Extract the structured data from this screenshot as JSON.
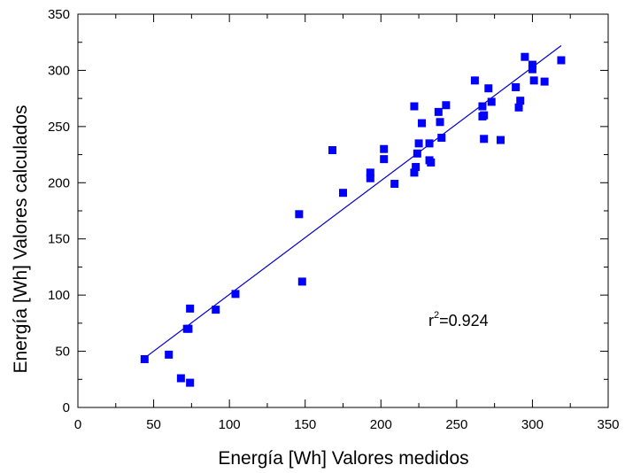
{
  "chart_data": {
    "type": "scatter",
    "title": "",
    "xlabel": "Energía [Wh] Valores medidos",
    "ylabel": "Energía [Wh] Valores calculados",
    "xlim": [
      0,
      350
    ],
    "ylim": [
      0,
      350
    ],
    "xticks": [
      0,
      50,
      100,
      150,
      200,
      250,
      300,
      350
    ],
    "yticks": [
      0,
      50,
      100,
      150,
      200,
      250,
      300,
      350
    ],
    "grid": false,
    "annotation": {
      "prefix": "r",
      "superscript": "2",
      "value": "=0.924"
    },
    "colors": {
      "marker": "#0000ff",
      "fit_line": "#0000cc",
      "axis": "#000000"
    },
    "fit_line": {
      "x": [
        44,
        319
      ],
      "y": [
        44,
        322
      ]
    },
    "series": [
      {
        "x": [
          44,
          60,
          68,
          72,
          73,
          74,
          74,
          91,
          104,
          146,
          148,
          168,
          175,
          193,
          193,
          202,
          202,
          209,
          222,
          222,
          223,
          224,
          225,
          227,
          232,
          232,
          233,
          238,
          239,
          240,
          243,
          262,
          267,
          267,
          268,
          268,
          271,
          273,
          279,
          289,
          291,
          292,
          295,
          300,
          300,
          301,
          308,
          319
        ],
        "y": [
          43,
          47,
          26,
          70,
          70,
          88,
          22,
          87,
          101,
          172,
          112,
          229,
          191,
          209,
          204,
          230,
          221,
          199,
          209,
          268,
          214,
          226,
          235,
          253,
          235,
          220,
          218,
          263,
          254,
          240,
          269,
          291,
          268,
          259,
          260,
          239,
          284,
          272,
          238,
          285,
          267,
          273,
          312,
          301,
          305,
          291,
          290,
          309
        ]
      }
    ]
  }
}
